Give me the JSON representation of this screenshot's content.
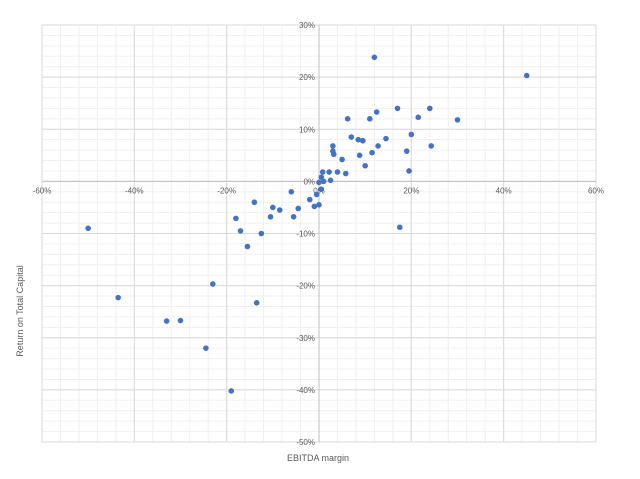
{
  "chart_data": {
    "type": "scatter",
    "title": "",
    "xlabel": "EBITDA margin",
    "ylabel": "Return on Total Capital",
    "xlim": [
      -0.6,
      0.6
    ],
    "ylim": [
      -0.5,
      0.3
    ],
    "x_ticks": [
      -0.6,
      -0.4,
      -0.2,
      0,
      0.2,
      0.4,
      0.6
    ],
    "y_ticks": [
      0.3,
      0.2,
      0.1,
      0,
      -0.1,
      -0.2,
      -0.3,
      -0.4,
      -0.5
    ],
    "x_tick_labels": [
      "-60%",
      "-40%",
      "-20%",
      "0%",
      "20%",
      "40%",
      "60%"
    ],
    "y_tick_labels": [
      "30%",
      "20%",
      "10%",
      "0%",
      "-10%",
      "-20%",
      "-30%",
      "-40%",
      "-50%"
    ],
    "grid": true,
    "minor_grid": true,
    "marker_color": "#4472c4",
    "series": [
      {
        "points": [
          [
            -0.5,
            -0.09
          ],
          [
            -0.435,
            -0.223
          ],
          [
            -0.33,
            -0.268
          ],
          [
            -0.3,
            -0.267
          ],
          [
            -0.245,
            -0.32
          ],
          [
            -0.23,
            -0.197
          ],
          [
            -0.19,
            -0.402
          ],
          [
            -0.18,
            -0.071
          ],
          [
            -0.17,
            -0.095
          ],
          [
            -0.155,
            -0.125
          ],
          [
            -0.14,
            -0.04
          ],
          [
            -0.135,
            -0.233
          ],
          [
            -0.125,
            -0.1
          ],
          [
            -0.105,
            -0.068
          ],
          [
            -0.1,
            -0.05
          ],
          [
            -0.085,
            -0.055
          ],
          [
            -0.06,
            -0.02
          ],
          [
            -0.045,
            -0.052
          ],
          [
            -0.055,
            -0.068
          ],
          [
            -0.02,
            -0.035
          ],
          [
            -0.01,
            -0.048
          ],
          [
            0.0,
            -0.045
          ],
          [
            -0.005,
            -0.025
          ],
          [
            0.005,
            -0.015
          ],
          [
            0.0,
            -0.002
          ],
          [
            0.01,
            0.0
          ],
          [
            0.008,
            0.018
          ],
          [
            0.005,
            0.008
          ],
          [
            0.022,
            0.018
          ],
          [
            0.025,
            0.002
          ],
          [
            0.03,
            0.058
          ],
          [
            0.032,
            0.052
          ],
          [
            0.03,
            0.068
          ],
          [
            0.04,
            0.018
          ],
          [
            0.05,
            0.042
          ],
          [
            0.058,
            0.015
          ],
          [
            0.062,
            0.12
          ],
          [
            0.07,
            0.085
          ],
          [
            0.085,
            0.08
          ],
          [
            0.088,
            0.05
          ],
          [
            0.095,
            0.078
          ],
          [
            0.1,
            0.03
          ],
          [
            0.11,
            0.12
          ],
          [
            0.115,
            0.055
          ],
          [
            0.12,
            0.238
          ],
          [
            0.125,
            0.133
          ],
          [
            0.128,
            0.068
          ],
          [
            0.145,
            0.082
          ],
          [
            0.17,
            0.14
          ],
          [
            0.175,
            -0.088
          ],
          [
            0.19,
            0.058
          ],
          [
            0.195,
            0.02
          ],
          [
            0.2,
            0.09
          ],
          [
            0.215,
            0.123
          ],
          [
            0.24,
            0.14
          ],
          [
            0.243,
            0.068
          ],
          [
            0.3,
            0.118
          ],
          [
            0.45,
            0.203
          ]
        ]
      }
    ]
  }
}
